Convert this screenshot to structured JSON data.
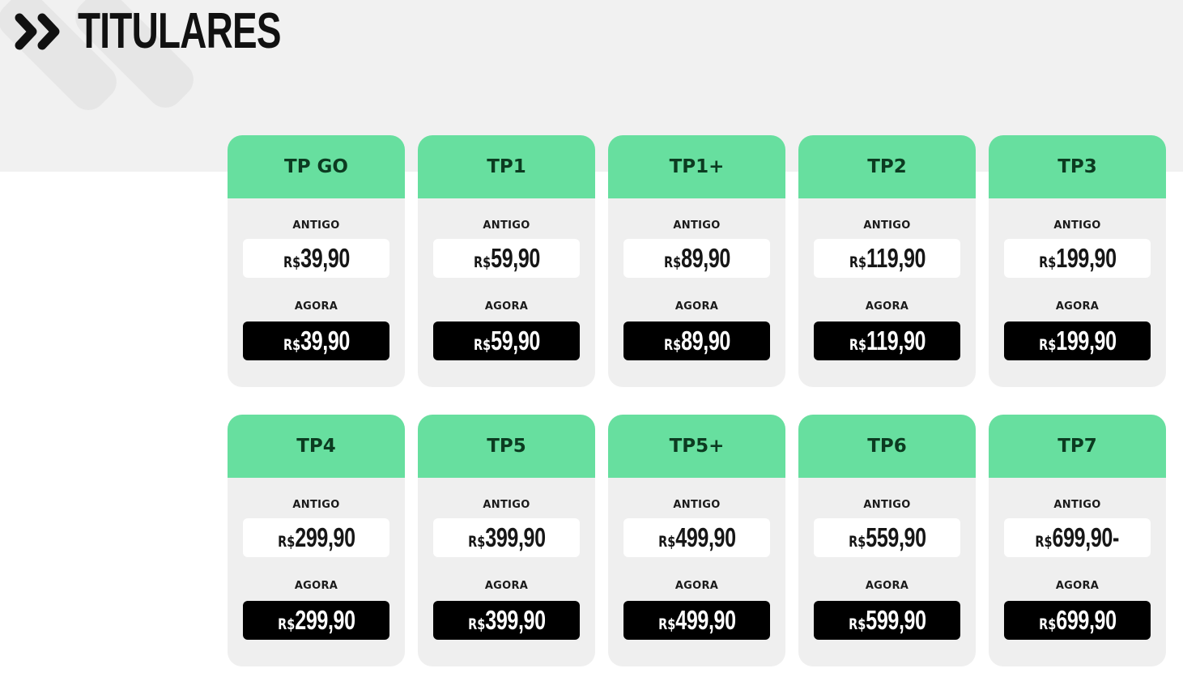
{
  "header": {
    "title": "TITULARES"
  },
  "icons": {
    "header_icon": "double-chevron-right-icon"
  },
  "colors": {
    "card_header": "#67df9f",
    "card_body": "#efefef",
    "accent_dark": "#000000"
  },
  "labels": {
    "old": "ANTIGO",
    "now": "AGORA"
  },
  "plans": [
    {
      "name": "TP GO",
      "old_currency": "R$",
      "old_price": "39,90",
      "new_currency": "R$",
      "new_price": "39,90"
    },
    {
      "name": "TP1",
      "old_currency": "R$",
      "old_price": "59,90",
      "new_currency": "R$",
      "new_price": "59,90"
    },
    {
      "name": "TP1+",
      "old_currency": "R$",
      "old_price": "89,90",
      "new_currency": "R$",
      "new_price": "89,90"
    },
    {
      "name": "TP2",
      "old_currency": "R$",
      "old_price": "119,90",
      "new_currency": "R$",
      "new_price": "119,90"
    },
    {
      "name": "TP3",
      "old_currency": "R$",
      "old_price": "199,90",
      "new_currency": "R$",
      "new_price": "199,90"
    },
    {
      "name": "TP4",
      "old_currency": "R$",
      "old_price": "299,90",
      "new_currency": "R$",
      "new_price": "299,90"
    },
    {
      "name": "TP5",
      "old_currency": "R$",
      "old_price": "399,90",
      "new_currency": "R$",
      "new_price": "399,90"
    },
    {
      "name": "TP5+",
      "old_currency": "R$",
      "old_price": "499,90",
      "new_currency": "R$",
      "new_price": "499,90"
    },
    {
      "name": "TP6",
      "old_currency": "R$",
      "old_price": "559,90",
      "new_currency": "R$",
      "new_price": "599,90"
    },
    {
      "name": "TP7",
      "old_currency": "R$",
      "old_price": "699,90-",
      "new_currency": "R$",
      "new_price": "699,90"
    }
  ]
}
